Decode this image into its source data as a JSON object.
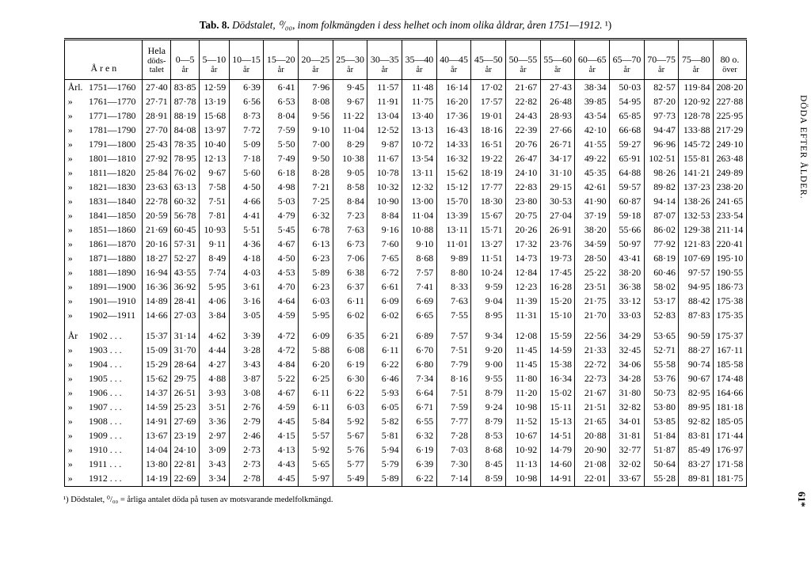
{
  "title": {
    "lead": "Tab. 8.",
    "body_italic": "Dödstalet, ⁰/₀₀, inom folkmängden i dess helhet och inom olika åldrar, åren 1751—1912.",
    "sup": "¹)"
  },
  "side_text": "DÖDA EFTER ÅLDER.",
  "page_number": "61*",
  "footnote": "¹) Dödstalet, ⁰/₀₀ = årliga antalet döda på tusen av motsvarande medelfolkmängd.",
  "headers": [
    {
      "top": "Å r e n",
      "sub": ""
    },
    {
      "top": "Hela",
      "sub": "döds-\ntalet"
    },
    {
      "top": "0—5",
      "sub": "år"
    },
    {
      "top": "5—10",
      "sub": "år"
    },
    {
      "top": "10—15",
      "sub": "år"
    },
    {
      "top": "15—20",
      "sub": "år"
    },
    {
      "top": "20—25",
      "sub": "år"
    },
    {
      "top": "25—30",
      "sub": "år"
    },
    {
      "top": "30—35",
      "sub": "år"
    },
    {
      "top": "35—40",
      "sub": "år"
    },
    {
      "top": "40—45",
      "sub": "år"
    },
    {
      "top": "45—50",
      "sub": "år"
    },
    {
      "top": "50—55",
      "sub": "år"
    },
    {
      "top": "55—60",
      "sub": "år"
    },
    {
      "top": "60—65",
      "sub": "år"
    },
    {
      "top": "65—70",
      "sub": "år"
    },
    {
      "top": "70—75",
      "sub": "år"
    },
    {
      "top": "75—80",
      "sub": "år"
    },
    {
      "top": "80 o.",
      "sub": "över"
    }
  ],
  "groups": [
    {
      "rows": [
        {
          "art": "Årl.",
          "label": "1751—1760",
          "v": [
            "27·40",
            "83·85",
            "12·59",
            "6·39",
            "6·41",
            "7·96",
            "9·45",
            "11·57",
            "11·48",
            "16·14",
            "17·02",
            "21·67",
            "27·43",
            "38·34",
            "50·03",
            "82·57",
            "119·84",
            "208·20"
          ]
        },
        {
          "art": "»",
          "label": "1761—1770",
          "v": [
            "27·71",
            "87·78",
            "13·19",
            "6·56",
            "6·53",
            "8·08",
            "9·67",
            "11·91",
            "11·75",
            "16·20",
            "17·57",
            "22·82",
            "26·48",
            "39·85",
            "54·95",
            "87·20",
            "120·92",
            "227·88"
          ]
        },
        {
          "art": "»",
          "label": "1771—1780",
          "v": [
            "28·91",
            "88·19",
            "15·68",
            "8·73",
            "8·04",
            "9·56",
            "11·22",
            "13·04",
            "13·40",
            "17·36",
            "19·01",
            "24·43",
            "28·93",
            "43·54",
            "65·85",
            "97·73",
            "128·78",
            "225·95"
          ]
        },
        {
          "art": "»",
          "label": "1781—1790",
          "v": [
            "27·70",
            "84·08",
            "13·97",
            "7·72",
            "7·59",
            "9·10",
            "11·04",
            "12·52",
            "13·13",
            "16·43",
            "18·16",
            "22·39",
            "27·66",
            "42·10",
            "66·68",
            "94·47",
            "133·88",
            "217·29"
          ]
        },
        {
          "art": "»",
          "label": "1791—1800",
          "v": [
            "25·43",
            "78·35",
            "10·40",
            "5·09",
            "5·50",
            "7·00",
            "8·29",
            "9·87",
            "10·72",
            "14·33",
            "16·51",
            "20·76",
            "26·71",
            "41·55",
            "59·27",
            "96·96",
            "145·72",
            "249·10"
          ]
        },
        {
          "art": "»",
          "label": "1801—1810",
          "v": [
            "27·92",
            "78·95",
            "12·13",
            "7·18",
            "7·49",
            "9·50",
            "10·38",
            "11·67",
            "13·54",
            "16·32",
            "19·22",
            "26·47",
            "34·17",
            "49·22",
            "65·91",
            "102·51",
            "155·81",
            "263·48"
          ]
        },
        {
          "art": "»",
          "label": "1811—1820",
          "v": [
            "25·84",
            "76·02",
            "9·67",
            "5·60",
            "6·18",
            "8·28",
            "9·05",
            "10·78",
            "13·11",
            "15·62",
            "18·19",
            "24·10",
            "31·10",
            "45·35",
            "64·88",
            "98·26",
            "141·21",
            "249·89"
          ]
        },
        {
          "art": "»",
          "label": "1821—1830",
          "v": [
            "23·63",
            "63·13",
            "7·58",
            "4·50",
            "4·98",
            "7·21",
            "8·58",
            "10·32",
            "12·32",
            "15·12",
            "17·77",
            "22·83",
            "29·15",
            "42·61",
            "59·57",
            "89·82",
            "137·23",
            "238·20"
          ]
        },
        {
          "art": "»",
          "label": "1831—1840",
          "v": [
            "22·78",
            "60·32",
            "7·51",
            "4·66",
            "5·03",
            "7·25",
            "8·84",
            "10·90",
            "13·00",
            "15·70",
            "18·30",
            "23·80",
            "30·53",
            "41·90",
            "60·87",
            "94·14",
            "138·26",
            "241·65"
          ]
        },
        {
          "art": "»",
          "label": "1841—1850",
          "v": [
            "20·59",
            "56·78",
            "7·81",
            "4·41",
            "4·79",
            "6·32",
            "7·23",
            "8·84",
            "11·04",
            "13·39",
            "15·67",
            "20·75",
            "27·04",
            "37·19",
            "59·18",
            "87·07",
            "132·53",
            "233·54"
          ]
        },
        {
          "art": "»",
          "label": "1851—1860",
          "v": [
            "21·69",
            "60·45",
            "10·93",
            "5·51",
            "5·45",
            "6·78",
            "7·63",
            "9·16",
            "10·88",
            "13·11",
            "15·71",
            "20·26",
            "26·91",
            "38·20",
            "55·66",
            "86·02",
            "129·38",
            "211·14"
          ]
        },
        {
          "art": "»",
          "label": "1861—1870",
          "v": [
            "20·16",
            "57·31",
            "9·11",
            "4·36",
            "4·67",
            "6·13",
            "6·73",
            "7·60",
            "9·10",
            "11·01",
            "13·27",
            "17·32",
            "23·76",
            "34·59",
            "50·97",
            "77·92",
            "121·83",
            "220·41"
          ]
        },
        {
          "art": "»",
          "label": "1871—1880",
          "v": [
            "18·27",
            "52·27",
            "8·49",
            "4·18",
            "4·50",
            "6·23",
            "7·06",
            "7·65",
            "8·68",
            "9·89",
            "11·51",
            "14·73",
            "19·73",
            "28·50",
            "43·41",
            "68·19",
            "107·69",
            "195·10"
          ]
        },
        {
          "art": "»",
          "label": "1881—1890",
          "v": [
            "16·94",
            "43·55",
            "7·74",
            "4·03",
            "4·53",
            "5·89",
            "6·38",
            "6·72",
            "7·57",
            "8·80",
            "10·24",
            "12·84",
            "17·45",
            "25·22",
            "38·20",
            "60·46",
            "97·57",
            "190·55"
          ]
        },
        {
          "art": "»",
          "label": "1891—1900",
          "v": [
            "16·36",
            "36·92",
            "5·95",
            "3·61",
            "4·70",
            "6·23",
            "6·37",
            "6·61",
            "7·41",
            "8·33",
            "9·59",
            "12·23",
            "16·28",
            "23·51",
            "36·38",
            "58·02",
            "94·95",
            "186·73"
          ]
        },
        {
          "art": "»",
          "label": "1901—1910",
          "v": [
            "14·89",
            "28·41",
            "4·06",
            "3·16",
            "4·64",
            "6·03",
            "6·11",
            "6·09",
            "6·69",
            "7·63",
            "9·04",
            "11·39",
            "15·20",
            "21·75",
            "33·12",
            "53·17",
            "88·42",
            "175·38"
          ]
        },
        {
          "art": "»",
          "label": "1902—1911",
          "v": [
            "14·66",
            "27·03",
            "3·84",
            "3·05",
            "4·59",
            "5·95",
            "6·02",
            "6·02",
            "6·65",
            "7·55",
            "8·95",
            "11·31",
            "15·10",
            "21·70",
            "33·03",
            "52·83",
            "87·83",
            "175·35"
          ]
        }
      ]
    },
    {
      "rows": [
        {
          "art": "År",
          "label": "1902 . . .",
          "v": [
            "15·37",
            "31·14",
            "4·62",
            "3·39",
            "4·72",
            "6·09",
            "6·35",
            "6·21",
            "6·89",
            "7·57",
            "9·34",
            "12·08",
            "15·59",
            "22·56",
            "34·29",
            "53·65",
            "90·59",
            "175·37"
          ]
        },
        {
          "art": "»",
          "label": "1903 . . .",
          "v": [
            "15·09",
            "31·70",
            "4·44",
            "3·28",
            "4·72",
            "5·88",
            "6·08",
            "6·11",
            "6·70",
            "7·51",
            "9·20",
            "11·45",
            "14·59",
            "21·33",
            "32·45",
            "52·71",
            "88·27",
            "167·11"
          ]
        },
        {
          "art": "»",
          "label": "1904 . . .",
          "v": [
            "15·29",
            "28·64",
            "4·27",
            "3·43",
            "4·84",
            "6·20",
            "6·19",
            "6·22",
            "6·80",
            "7·79",
            "9·00",
            "11·45",
            "15·38",
            "22·72",
            "34·06",
            "55·58",
            "90·74",
            "185·58"
          ]
        },
        {
          "art": "»",
          "label": "1905 . . .",
          "v": [
            "15·62",
            "29·75",
            "4·88",
            "3·87",
            "5·22",
            "6·25",
            "6·30",
            "6·46",
            "7·34",
            "8·16",
            "9·55",
            "11·80",
            "16·34",
            "22·73",
            "34·28",
            "53·76",
            "90·67",
            "174·48"
          ]
        },
        {
          "art": "»",
          "label": "1906 . . .",
          "v": [
            "14·37",
            "26·51",
            "3·93",
            "3·08",
            "4·67",
            "6·11",
            "6·22",
            "5·93",
            "6·64",
            "7·51",
            "8·79",
            "11·20",
            "15·02",
            "21·67",
            "31·80",
            "50·73",
            "82·95",
            "164·66"
          ]
        },
        {
          "art": "»",
          "label": "1907 . . .",
          "v": [
            "14·59",
            "25·23",
            "3·51",
            "2·76",
            "4·59",
            "6·11",
            "6·03",
            "6·05",
            "6·71",
            "7·59",
            "9·24",
            "10·98",
            "15·11",
            "21·51",
            "32·82",
            "53·80",
            "89·95",
            "181·18"
          ]
        },
        {
          "art": "»",
          "label": "1908 . . .",
          "v": [
            "14·91",
            "27·69",
            "3·36",
            "2·79",
            "4·45",
            "5·84",
            "5·92",
            "5·82",
            "6·55",
            "7·77",
            "8·79",
            "11·52",
            "15·13",
            "21·65",
            "34·01",
            "53·85",
            "92·82",
            "185·05"
          ]
        },
        {
          "art": "»",
          "label": "1909 . . .",
          "v": [
            "13·67",
            "23·19",
            "2·97",
            "2·46",
            "4·15",
            "5·57",
            "5·67",
            "5·81",
            "6·32",
            "7·28",
            "8·53",
            "10·67",
            "14·51",
            "20·88",
            "31·81",
            "51·84",
            "83·81",
            "171·44"
          ]
        },
        {
          "art": "»",
          "label": "1910 . . .",
          "v": [
            "14·04",
            "24·10",
            "3·09",
            "2·73",
            "4·13",
            "5·92",
            "5·76",
            "5·94",
            "6·19",
            "7·03",
            "8·68",
            "10·92",
            "14·79",
            "20·90",
            "32·77",
            "51·87",
            "85·49",
            "176·97"
          ]
        },
        {
          "art": "»",
          "label": "1911 . . .",
          "v": [
            "13·80",
            "22·81",
            "3·43",
            "2·73",
            "4·43",
            "5·65",
            "5·77",
            "5·79",
            "6·39",
            "7·30",
            "8·45",
            "11·13",
            "14·60",
            "21·08",
            "32·02",
            "50·64",
            "83·27",
            "171·58"
          ]
        },
        {
          "art": "»",
          "label": "1912 . . .",
          "v": [
            "14·19",
            "22·69",
            "3·34",
            "2·78",
            "4·45",
            "5·97",
            "5·49",
            "5·89",
            "6·22",
            "7·14",
            "8·59",
            "10·98",
            "14·91",
            "22·01",
            "33·67",
            "55·28",
            "89·81",
            "181·75"
          ]
        }
      ]
    }
  ]
}
